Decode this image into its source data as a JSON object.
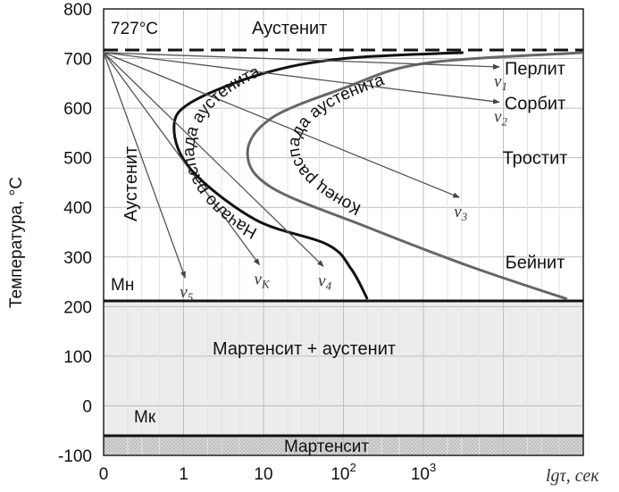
{
  "chart_data": {
    "type": "ttt-diagram",
    "title": "",
    "xlabel": "lgτ, сек",
    "ylabel": "Температура, °С",
    "ylim": [
      -100,
      800
    ],
    "xlim_log_tau": [
      -1,
      5
    ],
    "y_ticks": [
      "800",
      "700",
      "600",
      "500",
      "400",
      "300",
      "200",
      "100",
      "0",
      "-100"
    ],
    "x_ticks": [
      {
        "label": "0",
        "log_tau": -1
      },
      {
        "label": "1",
        "log_tau": 0
      },
      {
        "label": "10",
        "log_tau": 1
      },
      {
        "label": "10",
        "sup": "2",
        "log_tau": 2
      },
      {
        "label": "10",
        "sup": "3",
        "log_tau": 3
      }
    ],
    "temperatures": {
      "A1": 727,
      "Mn": 215,
      "Mk": -55
    },
    "labels": {
      "a1": "727°С",
      "austenite_top": "Аустенит",
      "austenite_left": "Аустенит",
      "mn": "Мн",
      "mk": "Мк",
      "start_curve": "Начало распада аустенита",
      "end_curve": "Конец распада аустенита",
      "martensite_austenite": "Мартенсит + аустенит",
      "martensite": "Мартенсит"
    },
    "regions": [
      {
        "name": "Перлит",
        "temp": 680
      },
      {
        "name": "Сорбит",
        "temp": 610
      },
      {
        "name": "Тростит",
        "temp": 500
      },
      {
        "name": "Бейнит",
        "temp": 290
      }
    ],
    "curves": {
      "start": [
        {
          "log_tau": 3.5,
          "temp": 712
        },
        {
          "log_tau": 2,
          "temp": 700
        },
        {
          "log_tau": 1,
          "temp": 670
        },
        {
          "log_tau": 0.1,
          "temp": 612
        },
        {
          "log_tau": -0.12,
          "temp": 560
        },
        {
          "log_tau": 0.1,
          "temp": 475
        },
        {
          "log_tau": 0.9,
          "temp": 375
        },
        {
          "log_tau": 1.8,
          "temp": 325
        },
        {
          "log_tau": 2.1,
          "temp": 275
        },
        {
          "log_tau": 2.3,
          "temp": 215
        }
      ],
      "end": [
        {
          "log_tau": 5,
          "temp": 712
        },
        {
          "log_tau": 3,
          "temp": 690
        },
        {
          "log_tau": 2,
          "temp": 640
        },
        {
          "log_tau": 1.1,
          "temp": 580
        },
        {
          "log_tau": 0.8,
          "temp": 510
        },
        {
          "log_tau": 1.1,
          "temp": 440
        },
        {
          "log_tau": 2.3,
          "temp": 360
        },
        {
          "log_tau": 3.6,
          "temp": 280
        },
        {
          "log_tau": 4.8,
          "temp": 215
        }
      ]
    },
    "cooling_rates": [
      {
        "name": "v",
        "sub": "1",
        "end_log_tau": 3.95,
        "end_temp": 683
      },
      {
        "name": "v",
        "sub": "2",
        "end_log_tau": 3.95,
        "end_temp": 612
      },
      {
        "name": "v",
        "sub": "3",
        "end_log_tau": 3.45,
        "end_temp": 420
      },
      {
        "name": "v",
        "sub": "4",
        "end_log_tau": 1.75,
        "end_temp": 281
      },
      {
        "name": "v",
        "sub": "К",
        "end_log_tau": 0.95,
        "end_temp": 284
      },
      {
        "name": "v",
        "sub": "5",
        "end_log_tau": 0.02,
        "end_temp": 258
      }
    ],
    "grid": true
  }
}
